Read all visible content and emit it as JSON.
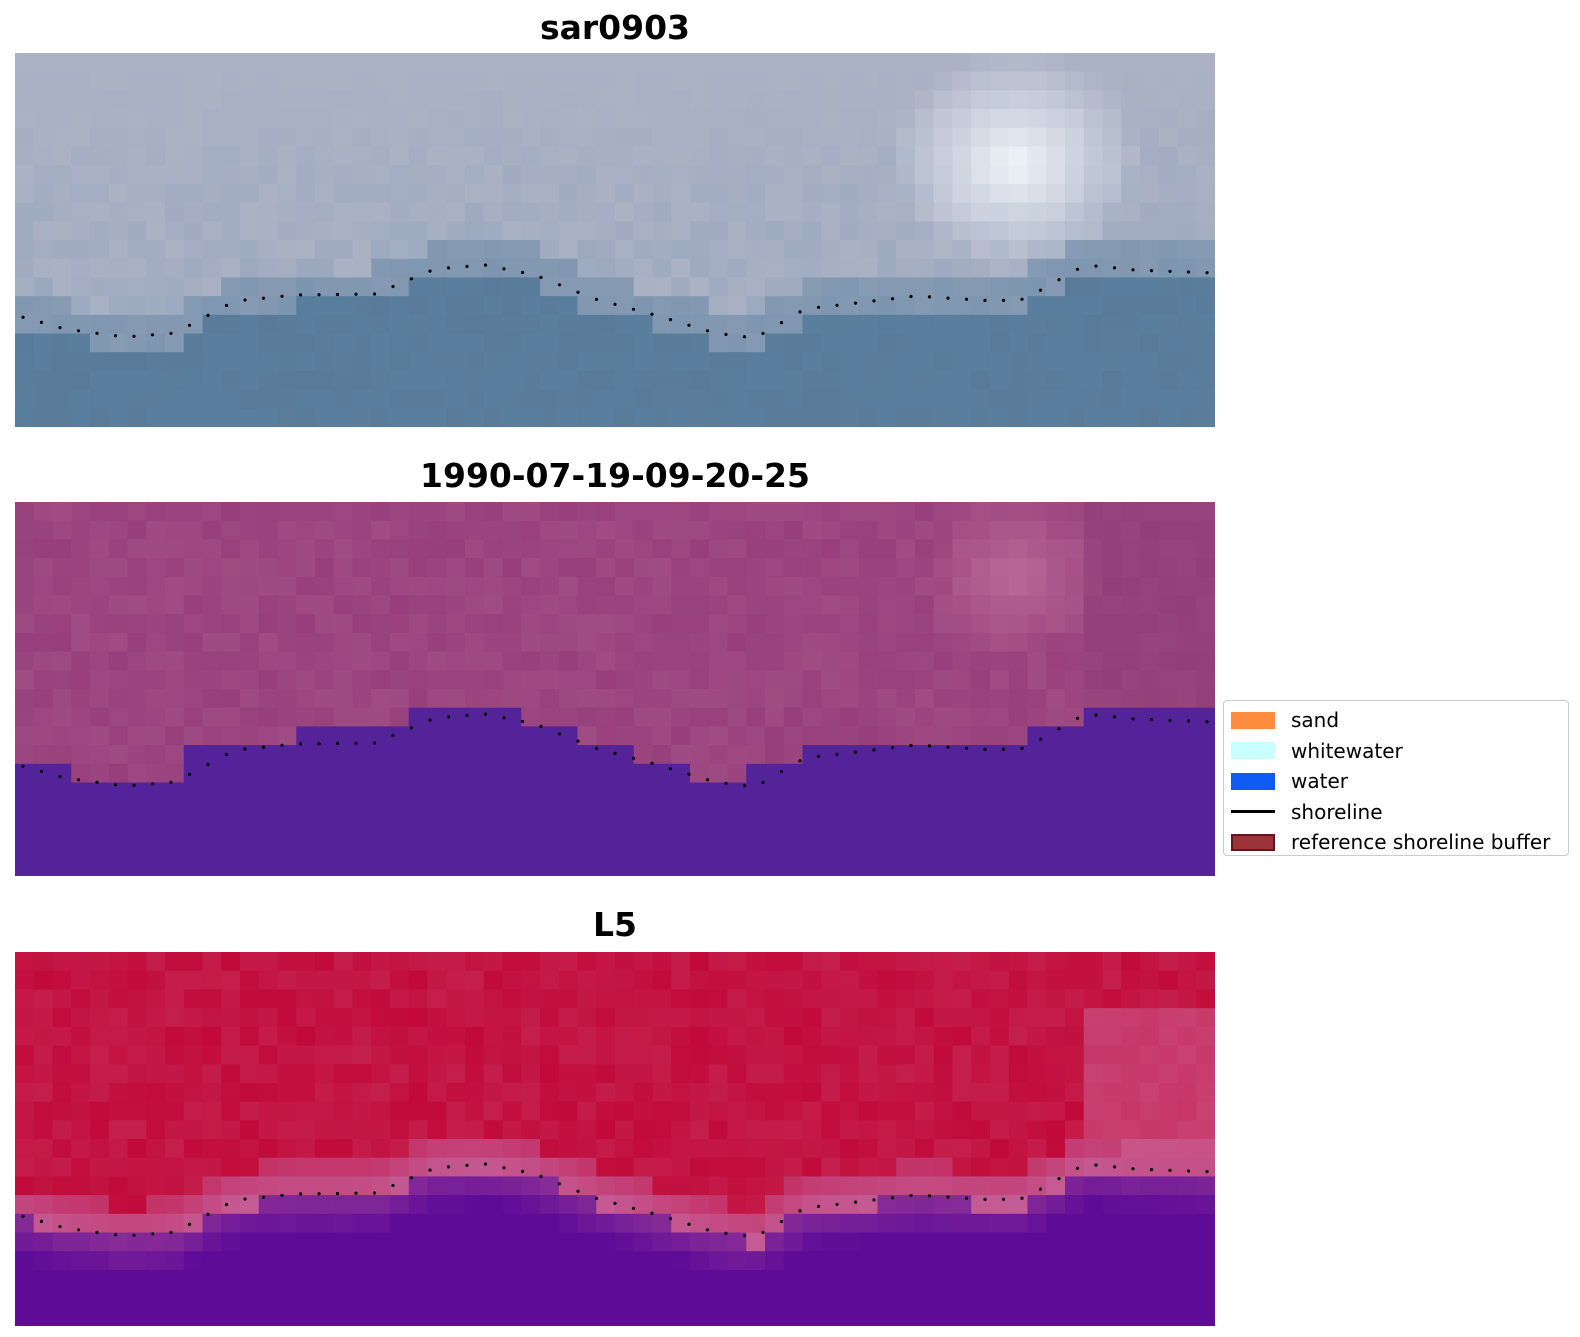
{
  "panels": [
    {
      "title": "sar0903",
      "kind": "rgb"
    },
    {
      "title": "1990-07-19-09-20-25",
      "kind": "classified"
    },
    {
      "title": "L5",
      "kind": "index"
    }
  ],
  "legend": {
    "items": [
      {
        "label": "sand",
        "type": "patch",
        "color": "#ff8c3f"
      },
      {
        "label": "whitewater",
        "type": "patch",
        "color": "#c9ffff"
      },
      {
        "label": "water",
        "type": "patch",
        "color": "#0f5cf5"
      },
      {
        "label": "shoreline",
        "type": "line",
        "color": "#000000"
      },
      {
        "label": "reference shoreline buffer",
        "type": "patch",
        "color": "#9b3339",
        "edge": "#5a1a1e"
      }
    ]
  },
  "colors": {
    "classified_water": "#54239a",
    "classified_land": "#963f7c",
    "rgb_water": "#5a7f9e",
    "rgb_land": "#b6b8c8",
    "index_high": "#c10a3a",
    "index_low": "#5e0c98",
    "shoreline_dots": "#000000"
  },
  "icons": {
    "shoreline-dots": "dotted-line",
    "legend-line": "solid-line"
  }
}
